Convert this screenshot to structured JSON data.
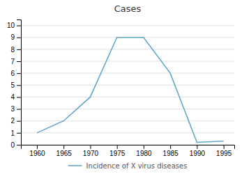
{
  "chart_data": {
    "type": "line",
    "title": "Cases",
    "x": [
      1960,
      1965,
      1970,
      1975,
      1980,
      1985,
      1990,
      1995
    ],
    "series": [
      {
        "name": "Incidence of X virus diseases",
        "color": "#5BA3C9",
        "values": [
          1,
          2,
          4,
          9,
          9,
          6,
          0.2,
          0.3
        ]
      }
    ],
    "xlim": [
      1957,
      1997
    ],
    "ylim": [
      0,
      10.5
    ],
    "xticks": [
      1960,
      1965,
      1970,
      1975,
      1980,
      1985,
      1990,
      1995
    ],
    "yticks": [
      0,
      1,
      2,
      3,
      4,
      5,
      6,
      7,
      8,
      9,
      10
    ],
    "grid": true,
    "legend": "bottom"
  }
}
